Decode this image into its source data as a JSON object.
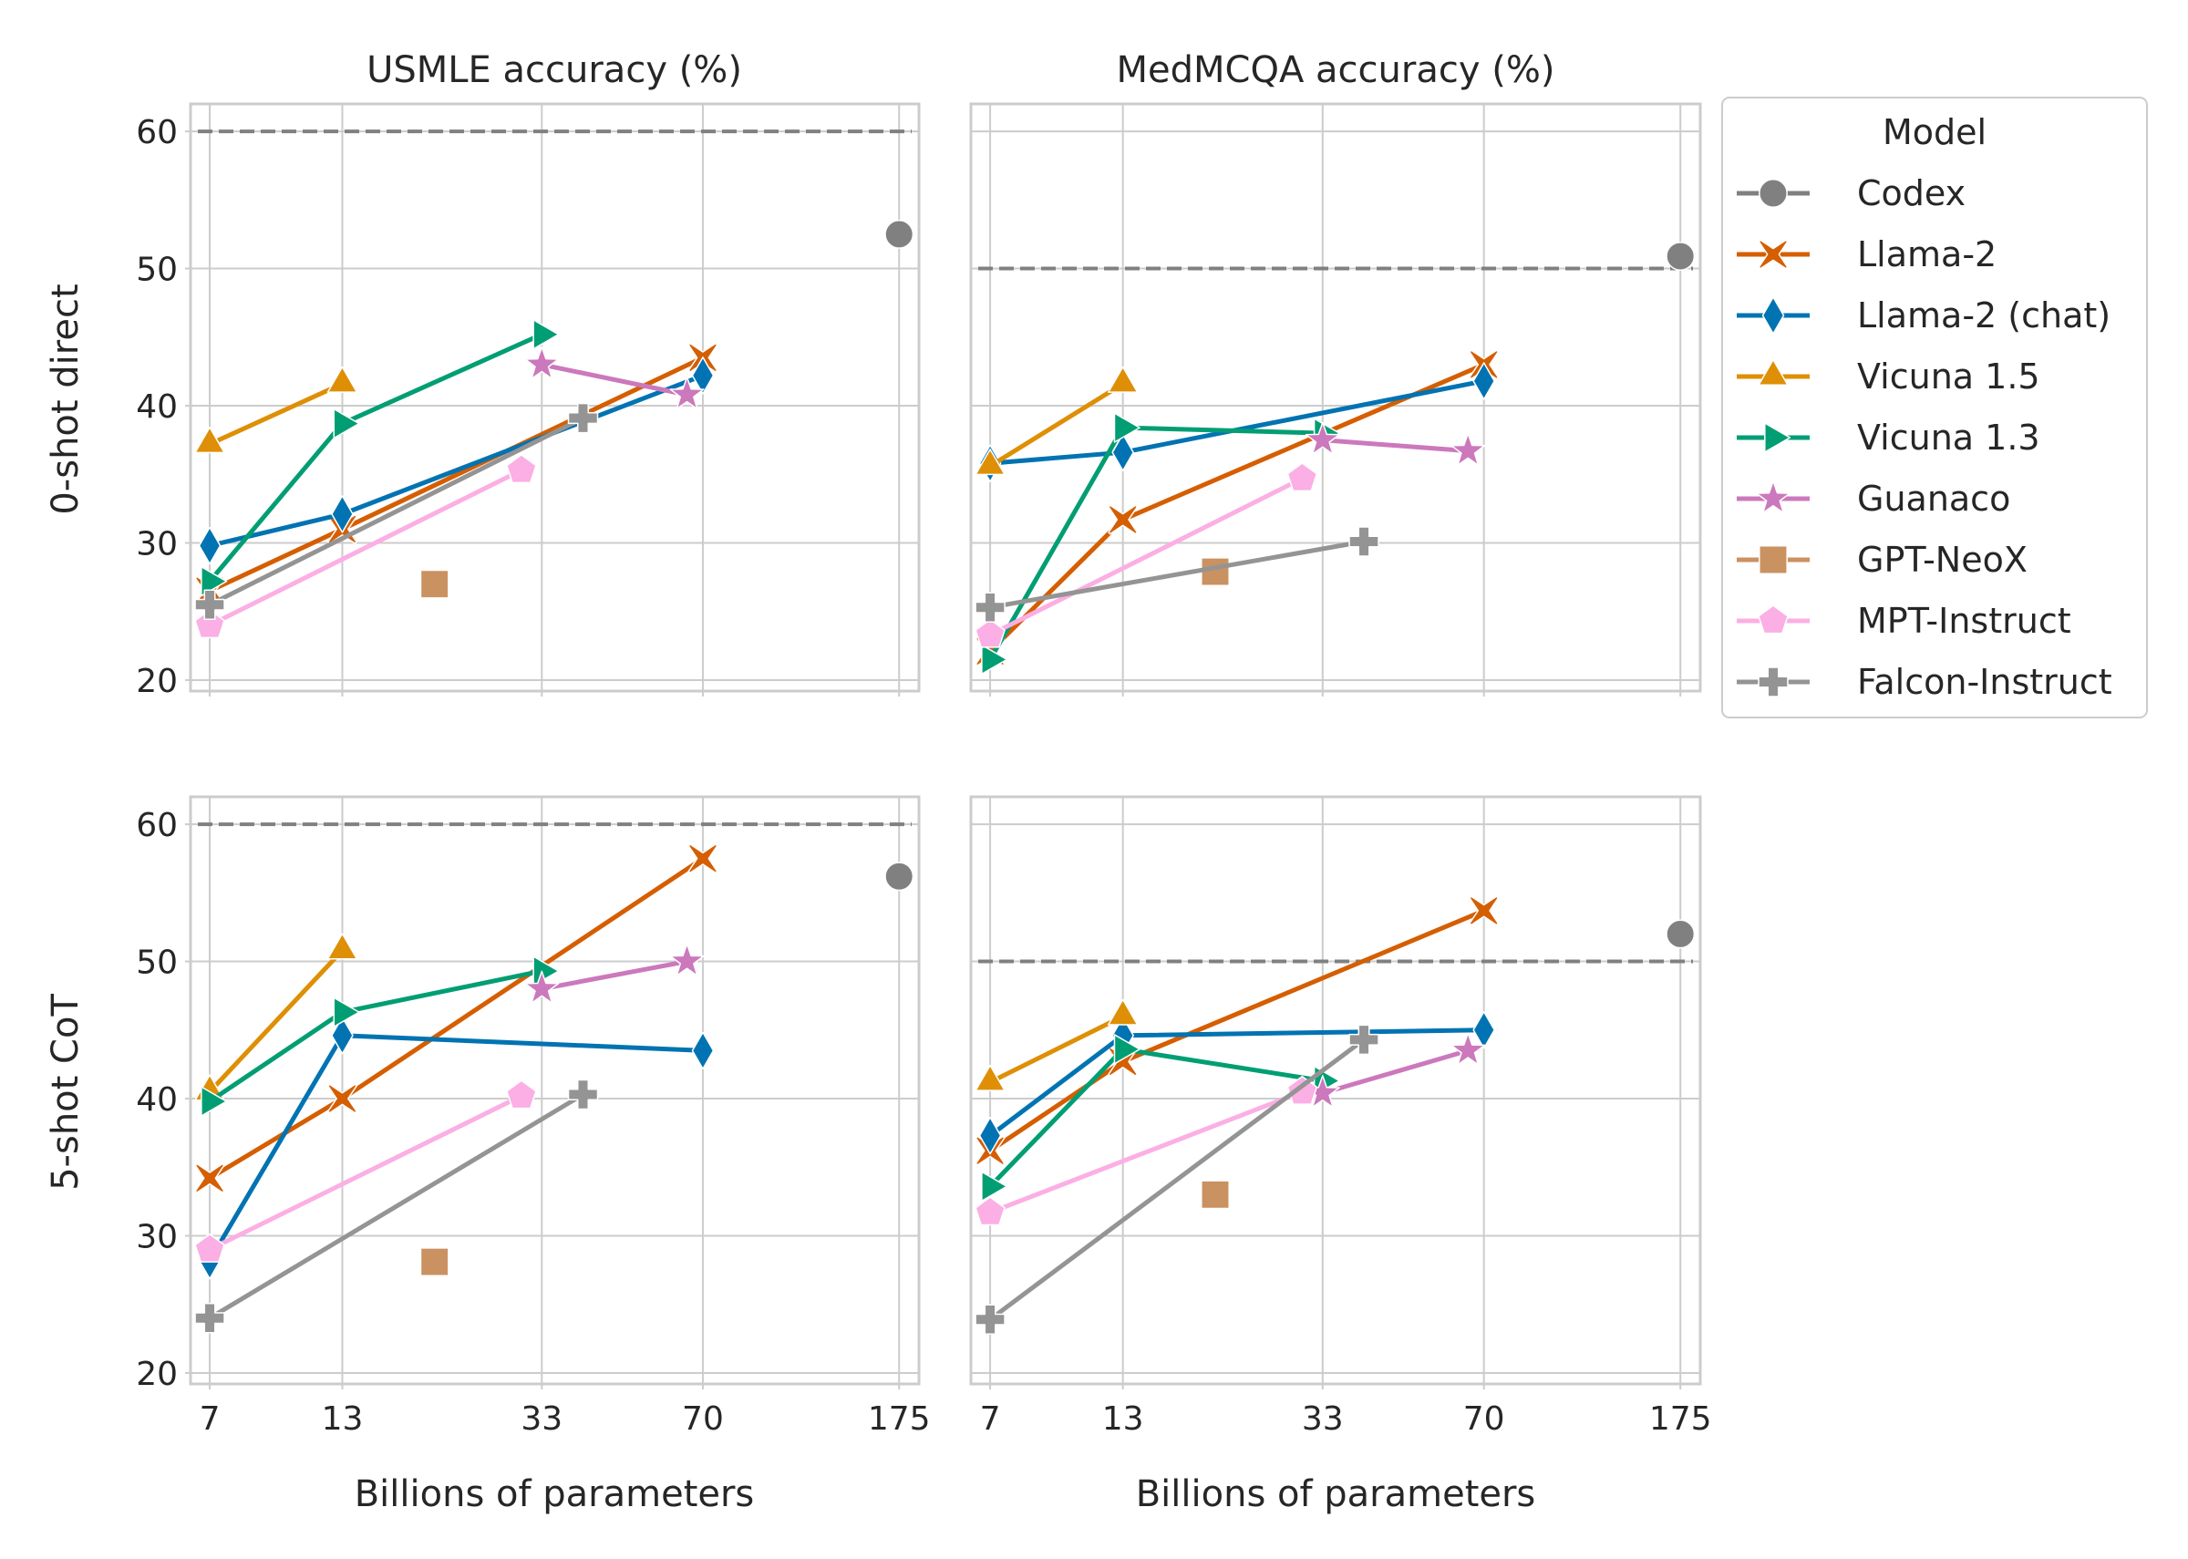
{
  "colors": {
    "Codex": "#808080",
    "Llama-2": "#d55e00",
    "Llama-2 (chat)": "#0173b2",
    "Vicuna 1.5": "#de8f05",
    "Vicuna 1.3": "#029e73",
    "Guanaco": "#cc78bc",
    "GPT-NeoX": "#ca9161",
    "MPT-Instruct": "#fbafe4",
    "Falcon-Instruct": "#949494",
    "reference_line": "#808080",
    "grid": "#cccccc",
    "spine": "#cccccc"
  },
  "chart_data": {
    "type": "line",
    "column_titles": [
      "USMLE accuracy (%)",
      "MedMCQA accuracy (%)"
    ],
    "row_labels": [
      "0-shot direct",
      "5-shot CoT"
    ],
    "xlabel": "Billions of parameters",
    "x_scale": "log",
    "x_ticks": [
      7,
      13,
      33,
      70,
      175
    ],
    "xlim": [
      6.4,
      192
    ],
    "y_ticks": [
      20,
      30,
      40,
      50,
      60
    ],
    "ylim": [
      19.2,
      62
    ],
    "legend": {
      "title": "Model",
      "placement": "outside-right",
      "entries": [
        "Codex",
        "Llama-2",
        "Llama-2 (chat)",
        "Vicuna 1.5",
        "Vicuna 1.3",
        "Guanaco",
        "GPT-NeoX",
        "MPT-Instruct",
        "Falcon-Instruct"
      ],
      "markers": [
        "circle",
        "x",
        "diamond",
        "triangle-up",
        "triangle-right",
        "star",
        "square",
        "pentagon",
        "plus"
      ]
    },
    "panels": [
      {
        "column": "USMLE accuracy (%)",
        "row": "0-shot direct",
        "reference_line": 60,
        "series": [
          {
            "name": "Codex",
            "marker": "circle",
            "points": [
              [
                175,
                52.5
              ]
            ]
          },
          {
            "name": "Llama-2",
            "marker": "x",
            "points": [
              [
                7,
                26.5
              ],
              [
                13,
                31
              ],
              [
                70,
                43.5
              ]
            ]
          },
          {
            "name": "Llama-2 (chat)",
            "marker": "diamond",
            "points": [
              [
                7,
                29.8
              ],
              [
                13,
                32.1
              ],
              [
                70,
                42.2
              ]
            ]
          },
          {
            "name": "Vicuna 1.5",
            "marker": "triangle-up",
            "points": [
              [
                7,
                37.2
              ],
              [
                13,
                41.6
              ]
            ]
          },
          {
            "name": "Vicuna 1.3",
            "marker": "triangle-right",
            "points": [
              [
                7,
                27.2
              ],
              [
                13,
                38.7
              ],
              [
                33,
                45.2
              ]
            ]
          },
          {
            "name": "Guanaco",
            "marker": "star",
            "points": [
              [
                33,
                43
              ],
              [
                65,
                40.8
              ]
            ]
          },
          {
            "name": "GPT-NeoX",
            "marker": "square",
            "points": [
              [
                20,
                27
              ]
            ]
          },
          {
            "name": "MPT-Instruct",
            "marker": "pentagon",
            "points": [
              [
                7,
                24
              ],
              [
                30,
                35.3
              ]
            ]
          },
          {
            "name": "Falcon-Instruct",
            "marker": "plus",
            "points": [
              [
                7,
                25.5
              ],
              [
                40,
                39.1
              ]
            ]
          }
        ]
      },
      {
        "column": "MedMCQA accuracy (%)",
        "row": "0-shot direct",
        "reference_line": 50,
        "series": [
          {
            "name": "Codex",
            "marker": "circle",
            "points": [
              [
                175,
                50.9
              ]
            ]
          },
          {
            "name": "Llama-2",
            "marker": "x",
            "points": [
              [
                7,
                22.1
              ],
              [
                13,
                31.7
              ],
              [
                70,
                43
              ]
            ]
          },
          {
            "name": "Llama-2 (chat)",
            "marker": "diamond",
            "points": [
              [
                7,
                35.8
              ],
              [
                13,
                36.6
              ],
              [
                70,
                41.8
              ]
            ]
          },
          {
            "name": "Vicuna 1.5",
            "marker": "triangle-up",
            "points": [
              [
                7,
                35.6
              ],
              [
                13,
                41.6
              ]
            ]
          },
          {
            "name": "Vicuna 1.3",
            "marker": "triangle-right",
            "points": [
              [
                7,
                21.5
              ],
              [
                13,
                38.4
              ],
              [
                33,
                38
              ]
            ]
          },
          {
            "name": "Guanaco",
            "marker": "star",
            "points": [
              [
                33,
                37.5
              ],
              [
                65,
                36.7
              ]
            ]
          },
          {
            "name": "GPT-NeoX",
            "marker": "square",
            "points": [
              [
                20,
                27.9
              ]
            ]
          },
          {
            "name": "MPT-Instruct",
            "marker": "pentagon",
            "points": [
              [
                7,
                23.3
              ],
              [
                30,
                34.7
              ]
            ]
          },
          {
            "name": "Falcon-Instruct",
            "marker": "plus",
            "points": [
              [
                7,
                25.3
              ],
              [
                40,
                30.1
              ]
            ]
          }
        ]
      },
      {
        "column": "USMLE accuracy (%)",
        "row": "5-shot CoT",
        "reference_line": 60,
        "series": [
          {
            "name": "Codex",
            "marker": "circle",
            "points": [
              [
                175,
                56.2
              ]
            ]
          },
          {
            "name": "Llama-2",
            "marker": "x",
            "points": [
              [
                7,
                34.2
              ],
              [
                13,
                40
              ],
              [
                70,
                57.5
              ]
            ]
          },
          {
            "name": "Llama-2 (chat)",
            "marker": "diamond",
            "points": [
              [
                7,
                28.2
              ],
              [
                13,
                44.6
              ],
              [
                70,
                43.5
              ]
            ]
          },
          {
            "name": "Vicuna 1.5",
            "marker": "triangle-up",
            "points": [
              [
                7,
                40.5
              ],
              [
                13,
                50.8
              ]
            ]
          },
          {
            "name": "Vicuna 1.3",
            "marker": "triangle-right",
            "points": [
              [
                7,
                39.8
              ],
              [
                13,
                46.3
              ],
              [
                33,
                49.3
              ]
            ]
          },
          {
            "name": "Guanaco",
            "marker": "star",
            "points": [
              [
                33,
                48
              ],
              [
                65,
                50
              ]
            ]
          },
          {
            "name": "GPT-NeoX",
            "marker": "square",
            "points": [
              [
                20,
                28.1
              ]
            ]
          },
          {
            "name": "MPT-Instruct",
            "marker": "pentagon",
            "points": [
              [
                7,
                29
              ],
              [
                30,
                40.2
              ]
            ]
          },
          {
            "name": "Falcon-Instruct",
            "marker": "plus",
            "points": [
              [
                7,
                24
              ],
              [
                40,
                40.3
              ]
            ]
          }
        ]
      },
      {
        "column": "MedMCQA accuracy (%)",
        "row": "5-shot CoT",
        "reference_line": 50,
        "series": [
          {
            "name": "Codex",
            "marker": "circle",
            "points": [
              [
                175,
                52
              ]
            ]
          },
          {
            "name": "Llama-2",
            "marker": "x",
            "points": [
              [
                7,
                36.2
              ],
              [
                13,
                42.7
              ],
              [
                70,
                53.7
              ]
            ]
          },
          {
            "name": "Llama-2 (chat)",
            "marker": "diamond",
            "points": [
              [
                7,
                37.3
              ],
              [
                13,
                44.6
              ],
              [
                70,
                45
              ]
            ]
          },
          {
            "name": "Vicuna 1.5",
            "marker": "triangle-up",
            "points": [
              [
                7,
                41.2
              ],
              [
                13,
                46
              ]
            ]
          },
          {
            "name": "Vicuna 1.3",
            "marker": "triangle-right",
            "points": [
              [
                7,
                33.6
              ],
              [
                13,
                43.6
              ],
              [
                33,
                41.3
              ]
            ]
          },
          {
            "name": "Guanaco",
            "marker": "star",
            "points": [
              [
                33,
                40.4
              ],
              [
                65,
                43.5
              ]
            ]
          },
          {
            "name": "GPT-NeoX",
            "marker": "square",
            "points": [
              [
                20,
                33
              ]
            ]
          },
          {
            "name": "MPT-Instruct",
            "marker": "pentagon",
            "points": [
              [
                7,
                31.7
              ],
              [
                30,
                40.5
              ]
            ]
          },
          {
            "name": "Falcon-Instruct",
            "marker": "plus",
            "points": [
              [
                7,
                23.9
              ],
              [
                40,
                44.3
              ]
            ]
          }
        ]
      }
    ]
  }
}
